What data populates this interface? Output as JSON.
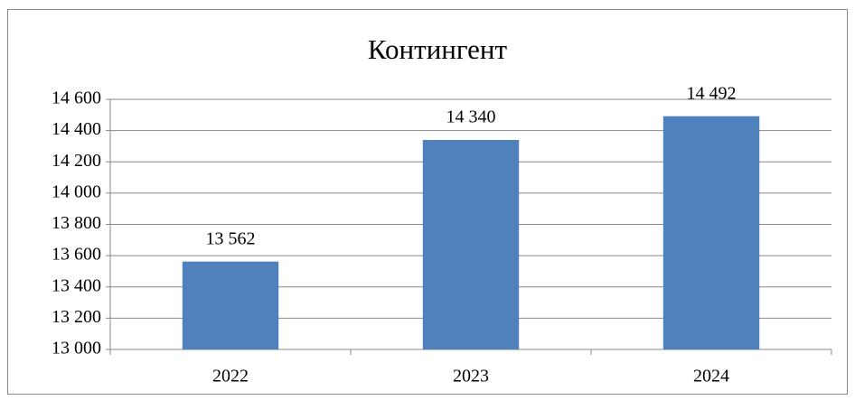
{
  "chart_data": {
    "type": "bar",
    "title": "Контингент",
    "categories": [
      "2022",
      "2023",
      "2024"
    ],
    "values": [
      13562,
      14340,
      14492
    ],
    "value_labels": [
      "13 562",
      "14 340",
      "14 492"
    ],
    "color": "#4f81bd",
    "ylim": [
      13000,
      14600
    ],
    "yticks": [
      {
        "value": 13000,
        "label": "13 000"
      },
      {
        "value": 13200,
        "label": "13 200"
      },
      {
        "value": 13400,
        "label": "13 400"
      },
      {
        "value": 13600,
        "label": "13 600"
      },
      {
        "value": 13800,
        "label": "13 800"
      },
      {
        "value": 14000,
        "label": "14 000"
      },
      {
        "value": 14200,
        "label": "14 200"
      },
      {
        "value": 14400,
        "label": "14 400"
      },
      {
        "value": 14600,
        "label": "14 600"
      }
    ],
    "grid": true
  }
}
